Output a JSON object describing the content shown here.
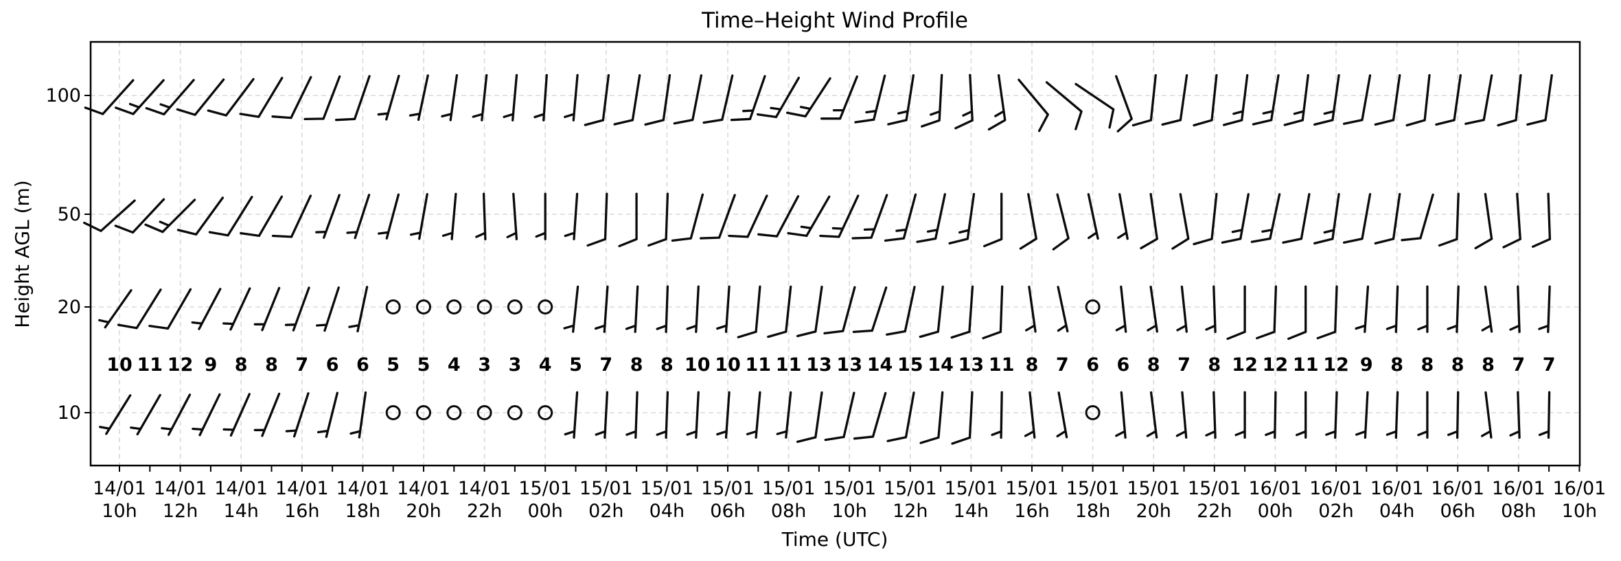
{
  "chart_data": {
    "type": "wind_barbs",
    "title": "Time–Height Wind Profile",
    "xlabel": "Time (UTC)",
    "ylabel": "Height AGL (m)",
    "y_tick_labels": [
      "100",
      "50",
      "20",
      "10"
    ],
    "heights_m": [
      100,
      50,
      20,
      10
    ],
    "n_time_steps": 48,
    "time_step_hours": 1,
    "x_tick_labels": [
      {
        "date": "14/01",
        "hour": "10h"
      },
      {
        "date": "14/01",
        "hour": "12h"
      },
      {
        "date": "14/01",
        "hour": "14h"
      },
      {
        "date": "14/01",
        "hour": "16h"
      },
      {
        "date": "14/01",
        "hour": "18h"
      },
      {
        "date": "14/01",
        "hour": "20h"
      },
      {
        "date": "14/01",
        "hour": "22h"
      },
      {
        "date": "15/01",
        "hour": "00h"
      },
      {
        "date": "15/01",
        "hour": "02h"
      },
      {
        "date": "15/01",
        "hour": "04h"
      },
      {
        "date": "15/01",
        "hour": "06h"
      },
      {
        "date": "15/01",
        "hour": "08h"
      },
      {
        "date": "15/01",
        "hour": "10h"
      },
      {
        "date": "15/01",
        "hour": "12h"
      },
      {
        "date": "15/01",
        "hour": "14h"
      },
      {
        "date": "15/01",
        "hour": "16h"
      },
      {
        "date": "15/01",
        "hour": "18h"
      },
      {
        "date": "15/01",
        "hour": "20h"
      },
      {
        "date": "15/01",
        "hour": "22h"
      },
      {
        "date": "16/01",
        "hour": "00h"
      },
      {
        "date": "16/01",
        "hour": "02h"
      },
      {
        "date": "16/01",
        "hour": "04h"
      },
      {
        "date": "16/01",
        "hour": "06h"
      },
      {
        "date": "16/01",
        "hour": "08h"
      },
      {
        "date": "16/01",
        "hour": "10h"
      }
    ],
    "red_speed_row": {
      "color": "#d40000",
      "values": [
        10,
        11,
        12,
        9,
        8,
        8,
        7,
        6,
        6,
        5,
        5,
        4,
        3,
        3,
        4,
        5,
        7,
        8,
        8,
        10,
        10,
        11,
        11,
        13,
        13,
        14,
        15,
        14,
        13,
        11,
        8,
        7,
        6,
        6,
        8,
        7,
        8,
        12,
        12,
        11,
        12,
        9,
        8,
        8,
        8,
        8,
        7,
        7
      ]
    },
    "levels": [
      {
        "height_m": 100,
        "dir_deg": [
          222,
          222,
          221,
          219,
          217,
          211,
          206,
          201,
          199,
          196,
          192,
          188,
          186,
          185,
          184,
          185,
          187,
          189,
          188,
          191,
          193,
          199,
          210,
          213,
          202,
          194,
          189,
          183,
          177,
          172,
          140,
          130,
          124,
          160,
          186,
          188,
          186,
          187,
          189,
          187,
          188,
          190,
          188,
          186,
          188,
          190,
          186,
          188
        ],
        "speed": [
          12,
          13,
          14,
          11,
          10,
          10,
          9,
          8,
          8,
          7,
          7,
          6,
          5,
          5,
          6,
          7,
          9,
          10,
          10,
          12,
          12,
          13,
          13,
          15,
          15,
          16,
          17,
          16,
          15,
          13,
          10,
          9,
          8,
          8,
          10,
          9,
          10,
          14,
          14,
          13,
          14,
          11,
          10,
          10,
          10,
          10,
          9,
          9
        ],
        "calm_steps": []
      },
      {
        "height_m": 50,
        "dir_deg": [
          228,
          223,
          225,
          216,
          212,
          210,
          205,
          200,
          198,
          195,
          190,
          185,
          178,
          176,
          180,
          184,
          182,
          180,
          182,
          195,
          200,
          205,
          208,
          210,
          205,
          200,
          195,
          192,
          188,
          180,
          170,
          166,
          168,
          170,
          172,
          170,
          186,
          190,
          192,
          190,
          188,
          190,
          188,
          196,
          182,
          172,
          176,
          178
        ],
        "speed": [
          11,
          12,
          13,
          10,
          9,
          9,
          8,
          7,
          7,
          6,
          6,
          5,
          4,
          4,
          5,
          6,
          8,
          9,
          9,
          11,
          11,
          12,
          12,
          14,
          14,
          15,
          16,
          15,
          14,
          12,
          9,
          8,
          7,
          7,
          9,
          8,
          9,
          13,
          13,
          12,
          13,
          10,
          9,
          9,
          9,
          9,
          8,
          8
        ],
        "calm_steps": []
      },
      {
        "height_m": 20,
        "dir_deg": [
          215,
          212,
          210,
          208,
          205,
          202,
          200,
          198,
          192,
          180,
          180,
          180,
          180,
          180,
          180,
          186,
          184,
          183,
          182,
          183,
          184,
          185,
          186,
          188,
          195,
          198,
          192,
          186,
          184,
          182,
          172,
          168,
          180,
          174,
          172,
          174,
          178,
          180,
          182,
          180,
          182,
          184,
          182,
          180,
          182,
          172,
          178,
          182
        ],
        "speed": [
          7,
          8,
          8,
          6,
          6,
          6,
          5,
          4,
          4,
          4,
          4,
          3,
          2,
          2,
          3,
          4,
          5,
          6,
          6,
          7,
          7,
          8,
          8,
          9,
          9,
          10,
          11,
          10,
          9,
          8,
          6,
          5,
          4,
          4,
          6,
          5,
          6,
          8,
          8,
          8,
          8,
          6,
          6,
          6,
          6,
          6,
          5,
          5
        ],
        "calm_steps": [
          9,
          10,
          11,
          12,
          13,
          14,
          32
        ]
      },
      {
        "height_m": 10,
        "dir_deg": [
          212,
          210,
          208,
          206,
          204,
          202,
          198,
          194,
          188,
          180,
          180,
          180,
          180,
          180,
          180,
          184,
          183,
          182,
          182,
          183,
          184,
          185,
          186,
          188,
          193,
          196,
          190,
          185,
          183,
          181,
          174,
          170,
          180,
          175,
          173,
          175,
          178,
          180,
          181,
          180,
          182,
          183,
          182,
          180,
          181,
          173,
          178,
          181
        ],
        "speed": [
          6,
          7,
          7,
          5,
          5,
          5,
          4,
          4,
          4,
          3,
          3,
          2,
          2,
          2,
          2,
          3,
          4,
          5,
          5,
          6,
          6,
          7,
          7,
          8,
          8,
          8,
          9,
          8,
          8,
          7,
          5,
          4,
          4,
          4,
          5,
          4,
          5,
          7,
          7,
          7,
          7,
          5,
          5,
          5,
          5,
          5,
          4,
          4
        ],
        "calm_steps": [
          9,
          10,
          11,
          12,
          13,
          14,
          32
        ]
      }
    ],
    "barb_units_note": "half barb = 5, full barb = 10, circle = calm",
    "grid": {
      "style": "dashed",
      "vertical_every_hours": 2,
      "horizontal_at_levels": true
    },
    "axes": {
      "x_range": [
        "14/01 10h",
        "16/01 10h"
      ],
      "y_ticks": [
        10,
        20,
        50,
        100
      ]
    }
  }
}
